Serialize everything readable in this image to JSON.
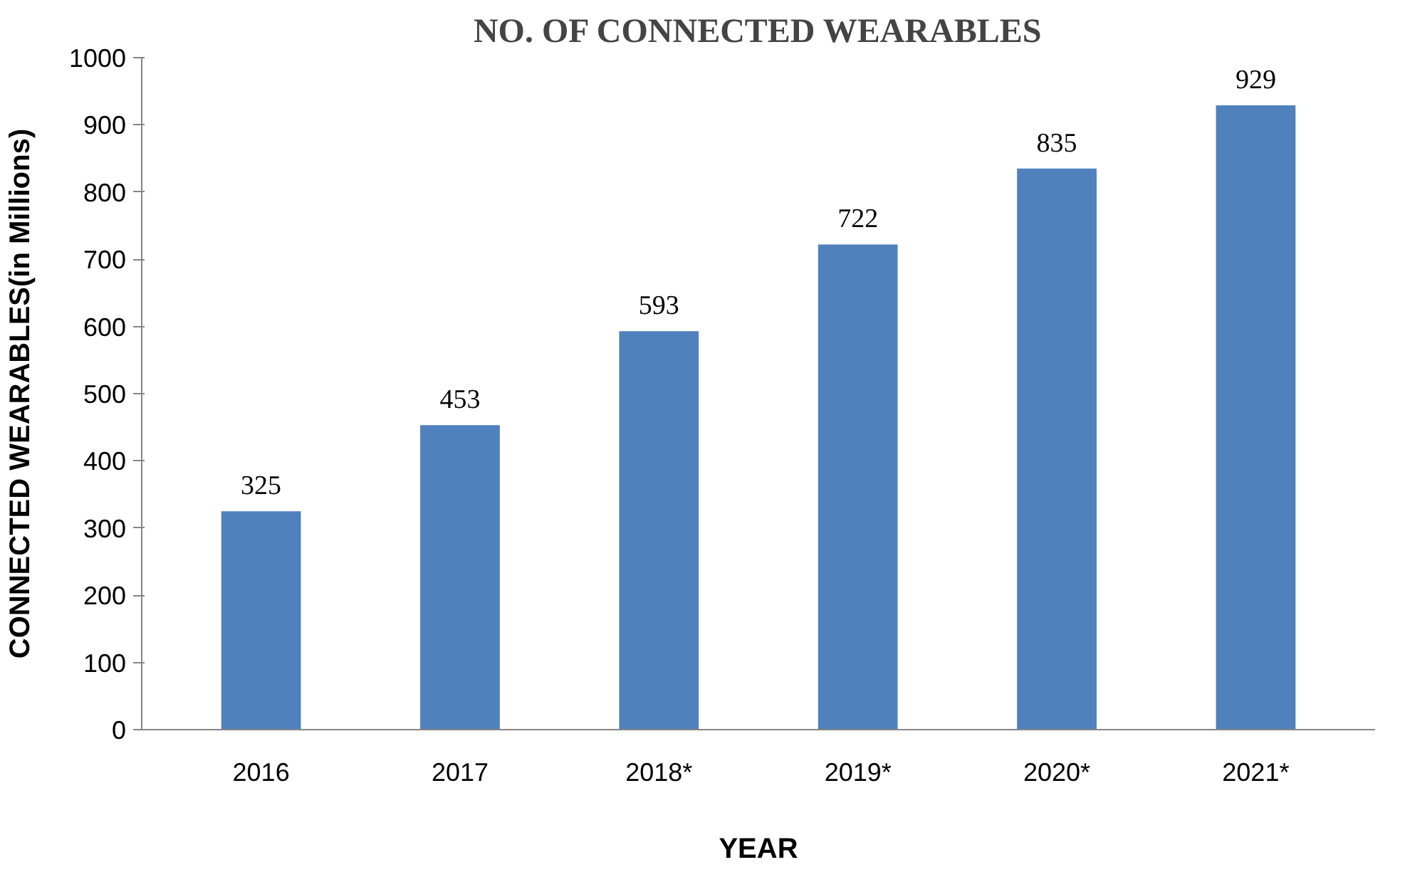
{
  "chart_data": {
    "type": "bar",
    "title": "NO. OF CONNECTED WEARABLES",
    "xlabel": "YEAR",
    "ylabel": "CONNECTED WEARABLES(in Millions)",
    "categories": [
      "2016",
      "2017",
      "2018*",
      "2019*",
      "2020*",
      "2021*"
    ],
    "values": [
      325,
      453,
      593,
      722,
      835,
      929
    ],
    "color": "#4f81bd",
    "ylim": [
      0,
      1000
    ],
    "yticks": [
      0,
      100,
      200,
      300,
      400,
      500,
      600,
      700,
      800,
      900,
      1000
    ],
    "grid": false,
    "data_labels": true
  }
}
